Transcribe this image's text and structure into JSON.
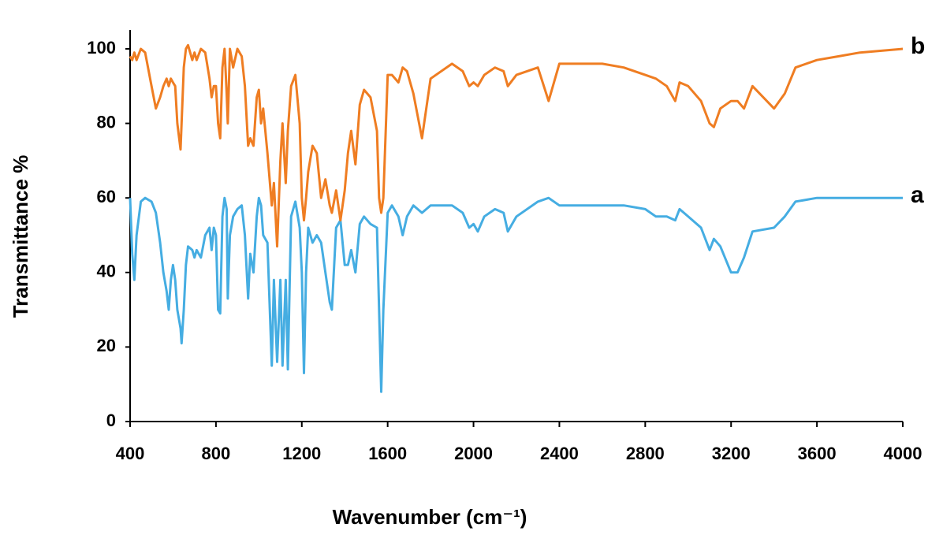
{
  "chart_data": {
    "type": "line",
    "xlabel": "Wavenumber (cm⁻¹)",
    "ylabel": "Transmittance %",
    "x": [
      400,
      410,
      420,
      430,
      450,
      470,
      500,
      520,
      540,
      555,
      570,
      580,
      590,
      600,
      610,
      620,
      635,
      640,
      650,
      660,
      670,
      690,
      700,
      710,
      730,
      750,
      770,
      780,
      790,
      800,
      810,
      820,
      830,
      840,
      850,
      855,
      865,
      880,
      900,
      920,
      935,
      950,
      960,
      975,
      990,
      1000,
      1010,
      1020,
      1040,
      1060,
      1070,
      1085,
      1100,
      1110,
      1125,
      1135,
      1150,
      1170,
      1190,
      1200,
      1210,
      1220,
      1230,
      1250,
      1270,
      1290,
      1310,
      1330,
      1340,
      1360,
      1380,
      1400,
      1415,
      1430,
      1450,
      1470,
      1490,
      1520,
      1550,
      1560,
      1570,
      1580,
      1600,
      1620,
      1650,
      1670,
      1690,
      1720,
      1760,
      1800,
      1900,
      1950,
      1980,
      2000,
      2020,
      2050,
      2100,
      2140,
      2160,
      2200,
      2300,
      2350,
      2400,
      2600,
      2700,
      2800,
      2850,
      2900,
      2940,
      2960,
      3000,
      3060,
      3100,
      3120,
      3150,
      3200,
      3230,
      3260,
      3300,
      3400,
      3450,
      3500,
      3600,
      3700,
      3800,
      4000
    ],
    "series": [
      {
        "name": "a",
        "color": "#45ade2",
        "values": [
          60,
          45,
          38,
          50,
          59,
          60,
          59,
          56,
          48,
          40,
          35,
          30,
          38,
          42,
          38,
          30,
          25,
          21,
          30,
          42,
          47,
          46,
          44,
          46,
          44,
          50,
          52,
          46,
          52,
          50,
          30,
          29,
          55,
          60,
          57,
          33,
          50,
          55,
          57,
          58,
          50,
          33,
          45,
          40,
          55,
          60,
          58,
          50,
          48,
          15,
          38,
          16,
          38,
          15,
          38,
          14,
          55,
          59,
          52,
          40,
          13,
          40,
          52,
          48,
          50,
          48,
          40,
          32,
          30,
          52,
          54,
          42,
          42,
          46,
          40,
          53,
          55,
          53,
          52,
          30,
          8,
          30,
          56,
          58,
          55,
          50,
          55,
          58,
          56,
          58,
          58,
          56,
          52,
          53,
          51,
          55,
          57,
          56,
          51,
          55,
          59,
          60,
          58,
          58,
          58,
          57,
          55,
          55,
          54,
          57,
          55,
          52,
          46,
          49,
          47,
          40,
          40,
          44,
          51,
          52,
          55,
          59,
          60,
          60,
          60,
          60
        ]
      },
      {
        "name": "b",
        "color": "#ef7d22",
        "values": [
          98,
          97,
          99,
          97,
          100,
          99,
          90,
          84,
          87,
          90,
          92,
          90,
          92,
          91,
          90,
          80,
          73,
          80,
          95,
          100,
          101,
          97,
          99,
          97,
          100,
          99,
          92,
          87,
          90,
          90,
          80,
          76,
          95,
          100,
          88,
          80,
          100,
          95,
          100,
          98,
          90,
          74,
          76,
          74,
          87,
          89,
          80,
          84,
          72,
          58,
          64,
          47,
          70,
          80,
          64,
          78,
          90,
          93,
          80,
          60,
          54,
          60,
          67,
          74,
          72,
          60,
          65,
          58,
          56,
          62,
          54,
          62,
          72,
          78,
          69,
          85,
          89,
          87,
          78,
          60,
          56,
          60,
          93,
          93,
          91,
          95,
          94,
          88,
          76,
          92,
          96,
          94,
          90,
          91,
          90,
          93,
          95,
          94,
          90,
          93,
          95,
          86,
          96,
          96,
          95,
          93,
          92,
          90,
          86,
          91,
          90,
          86,
          80,
          79,
          84,
          86,
          86,
          84,
          90,
          84,
          88,
          95,
          97,
          98,
          99,
          100
        ]
      }
    ],
    "xlim": [
      400,
      4000
    ],
    "xticks": [
      400,
      800,
      1200,
      1600,
      2000,
      2400,
      2800,
      3200,
      3600,
      4000
    ],
    "ylim": [
      0,
      100
    ],
    "yticks": [
      0,
      20,
      40,
      60,
      80,
      100
    ],
    "grid": false
  }
}
